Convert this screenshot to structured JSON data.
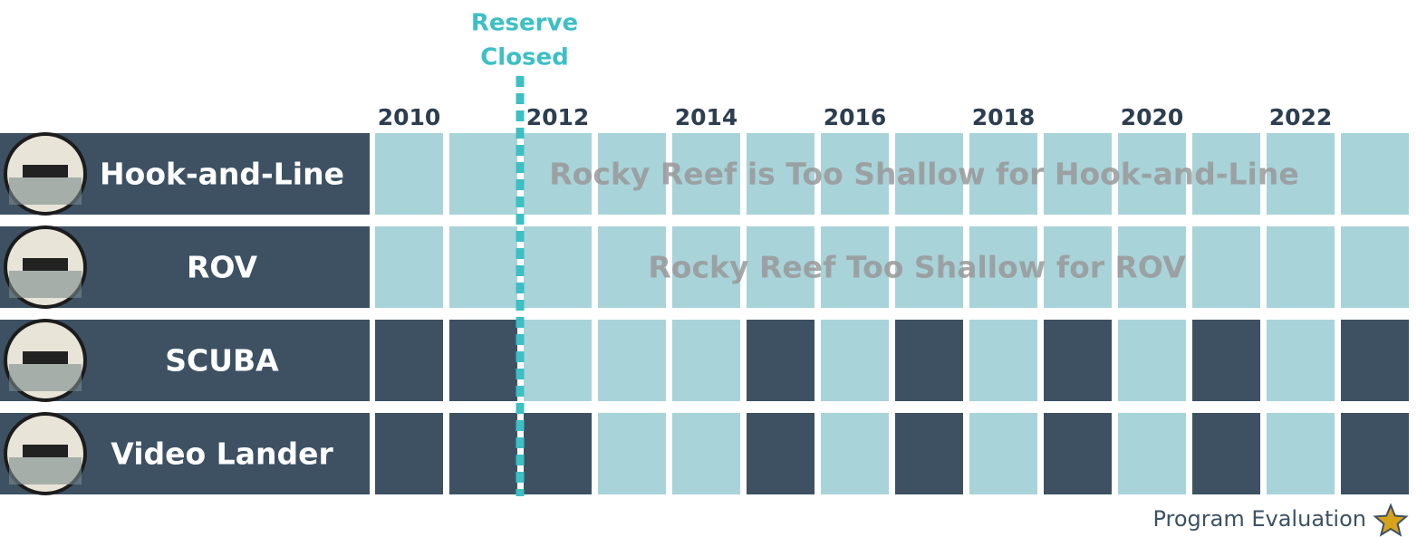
{
  "years": [
    "2010",
    null,
    "2012",
    null,
    "2014",
    null,
    "2016",
    null,
    "2018",
    null,
    "2020",
    null,
    "2022",
    null
  ],
  "marker": {
    "lines": [
      "Reserve",
      "Closed"
    ],
    "after_column": 1
  },
  "rows": [
    {
      "label": "Hook-and-Line",
      "note": "Rocky Reef is Too Shallow for Hook-and-Line",
      "surveyed": [
        false,
        false,
        false,
        false,
        false,
        false,
        false,
        false,
        false,
        false,
        false,
        false,
        false,
        false
      ]
    },
    {
      "label": "ROV",
      "note": "Rocky Reef Too Shallow for ROV",
      "surveyed": [
        false,
        false,
        false,
        false,
        false,
        false,
        false,
        false,
        false,
        false,
        false,
        false,
        false,
        false
      ]
    },
    {
      "label": "SCUBA",
      "surveyed": [
        true,
        true,
        false,
        false,
        false,
        true,
        false,
        true,
        false,
        true,
        false,
        true,
        false,
        true
      ]
    },
    {
      "label": "Video Lander",
      "surveyed": [
        true,
        true,
        true,
        false,
        false,
        true,
        false,
        true,
        false,
        true,
        false,
        true,
        false,
        true
      ]
    }
  ],
  "footer": {
    "label": "Program Evaluation"
  },
  "colors": {
    "surveyed": "#3d5163",
    "not_surveyed": "#a8d3d9",
    "marker": "#3dbfc4",
    "star": "#d9a21b"
  }
}
